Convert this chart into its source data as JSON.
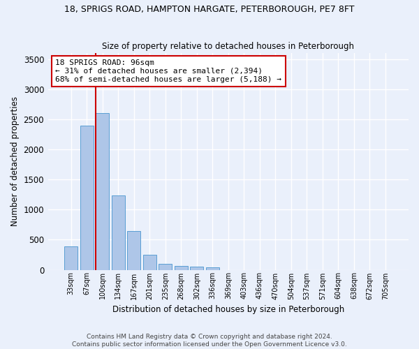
{
  "title_line1": "18, SPRIGS ROAD, HAMPTON HARGATE, PETERBOROUGH, PE7 8FT",
  "title_line2": "Size of property relative to detached houses in Peterborough",
  "xlabel": "Distribution of detached houses by size in Peterborough",
  "ylabel": "Number of detached properties",
  "footer_line1": "Contains HM Land Registry data © Crown copyright and database right 2024.",
  "footer_line2": "Contains public sector information licensed under the Open Government Licence v3.0.",
  "categories": [
    "33sqm",
    "67sqm",
    "100sqm",
    "134sqm",
    "167sqm",
    "201sqm",
    "235sqm",
    "268sqm",
    "302sqm",
    "336sqm",
    "369sqm",
    "403sqm",
    "436sqm",
    "470sqm",
    "504sqm",
    "537sqm",
    "571sqm",
    "604sqm",
    "638sqm",
    "672sqm",
    "705sqm"
  ],
  "values": [
    390,
    2400,
    2600,
    1230,
    640,
    255,
    95,
    60,
    55,
    40,
    0,
    0,
    0,
    0,
    0,
    0,
    0,
    0,
    0,
    0,
    0
  ],
  "bar_color": "#aec6e8",
  "bar_edge_color": "#5a9fd4",
  "background_color": "#eaf0fb",
  "grid_color": "#ffffff",
  "vline_color": "#cc0000",
  "vline_pos": 1.575,
  "annotation_text": "18 SPRIGS ROAD: 96sqm\n← 31% of detached houses are smaller (2,394)\n68% of semi-detached houses are larger (5,188) →",
  "annotation_box_color": "#ffffff",
  "annotation_box_edge": "#cc0000",
  "ylim": [
    0,
    3600
  ],
  "yticks": [
    0,
    500,
    1000,
    1500,
    2000,
    2500,
    3000,
    3500
  ]
}
